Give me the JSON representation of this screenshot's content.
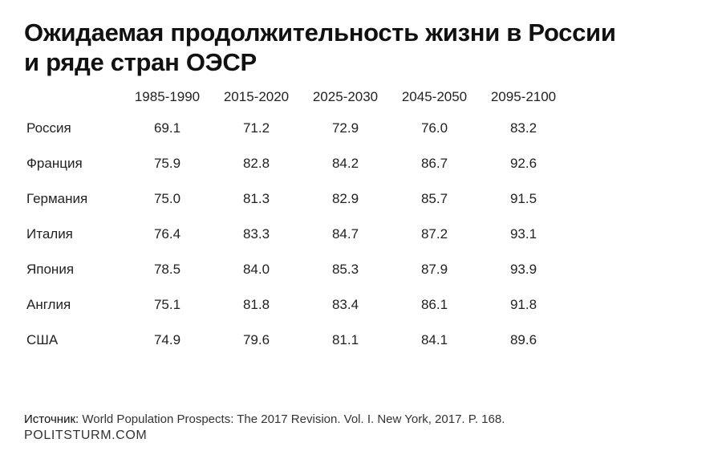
{
  "title": {
    "line1": "Ожидаемая продолжительность жизни в России",
    "line2": "и ряде стран ОЭСР"
  },
  "chart_data": {
    "type": "table",
    "columns": [
      "1985-1990",
      "2015-2020",
      "2025-2030",
      "2045-2050",
      "2095-2100"
    ],
    "rows": [
      {
        "country": "Россия",
        "values": [
          "69.1",
          "71.2",
          "72.9",
          "76.0",
          "83.2"
        ]
      },
      {
        "country": "Франция",
        "values": [
          "75.9",
          "82.8",
          "84.2",
          "86.7",
          "92.6"
        ]
      },
      {
        "country": "Германия",
        "values": [
          "75.0",
          "81.3",
          "82.9",
          "85.7",
          "91.5"
        ]
      },
      {
        "country": "Италия",
        "values": [
          "76.4",
          "83.3",
          "84.7",
          "87.2",
          "93.1"
        ]
      },
      {
        "country": "Япония",
        "values": [
          "78.5",
          "84.0",
          "85.3",
          "87.9",
          "93.9"
        ]
      },
      {
        "country": "Англия",
        "values": [
          "75.1",
          "81.8",
          "83.4",
          "86.1",
          "91.8"
        ]
      },
      {
        "country": "США",
        "values": [
          "74.9",
          "79.6",
          "81.1",
          "84.1",
          "89.6"
        ]
      }
    ]
  },
  "source": {
    "label": "Источник:",
    "text": " World Population Prospects: The 2017 Revision. Vol. I. New York, 2017. P. 168."
  },
  "site": "POLITSTURM.COM"
}
